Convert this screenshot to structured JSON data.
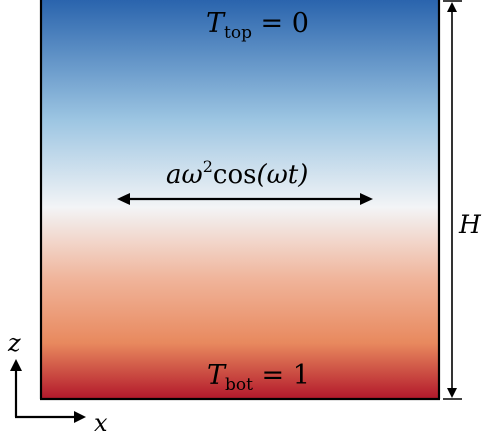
{
  "colors": {
    "gradient_top": "#2a64ad",
    "gradient_upper_mid": "#9cc5e2",
    "gradient_mid": "#f3f4f6",
    "gradient_lower_mid": "#f0b49a",
    "gradient_orange": "#e8895e",
    "gradient_bottom": "#b2182b",
    "stroke": "#000000"
  },
  "labels": {
    "top_T": "T",
    "top_sub": "top",
    "top_eq": " = 0",
    "bot_T": "T",
    "bot_sub": "bot",
    "bot_eq": " = 1",
    "forcing_a": "aω",
    "forcing_sup": "2",
    "forcing_cos": "cos",
    "forcing_arg": "(ωt)",
    "height": "H",
    "axis_z": "z",
    "axis_x": "x"
  }
}
